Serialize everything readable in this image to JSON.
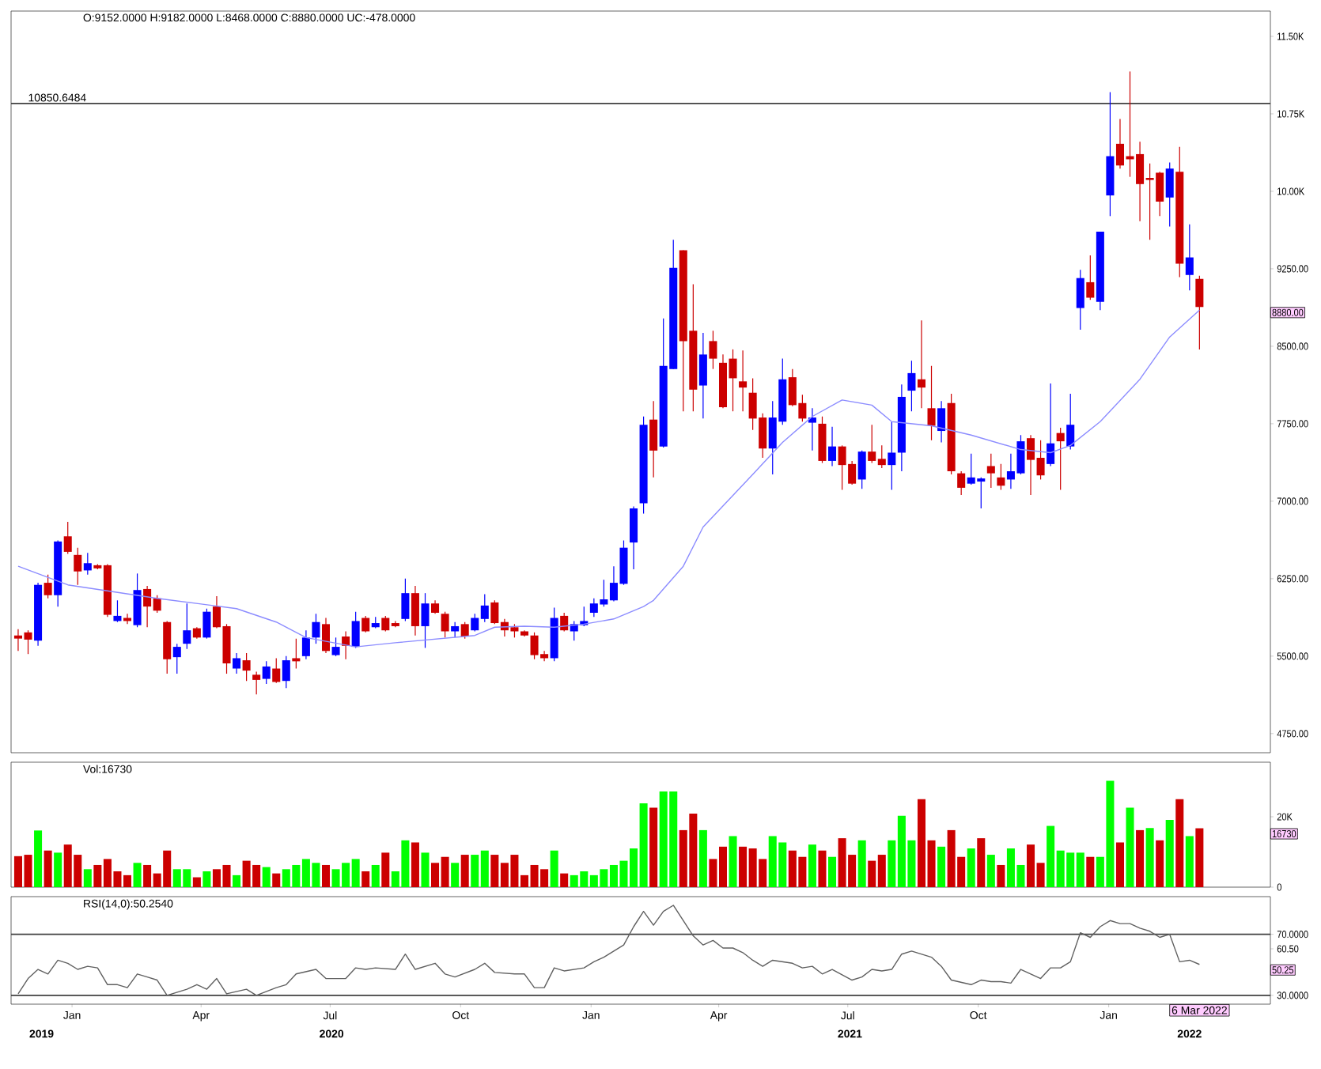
{
  "chart_data": [
    {
      "type": "candlestick",
      "x": [
        "2019-11-24",
        "2019-12-01",
        "2019-12-08",
        "2019-12-15",
        "2019-12-22",
        "2019-12-29",
        "2020-01-05",
        "2020-01-12",
        "2020-01-19",
        "2020-01-26",
        "2020-02-02",
        "2020-02-09",
        "2020-02-16",
        "2020-02-23",
        "2020-03-01",
        "2020-03-08",
        "2020-03-15",
        "2020-03-22",
        "2020-03-29",
        "2020-04-05",
        "2020-04-12",
        "2020-04-19",
        "2020-04-26",
        "2020-05-03",
        "2020-05-10",
        "2020-05-17",
        "2020-05-24",
        "2020-05-31",
        "2020-06-07",
        "2020-06-14",
        "2020-06-21",
        "2020-06-28",
        "2020-07-05",
        "2020-07-12",
        "2020-07-19",
        "2020-07-26",
        "2020-08-02",
        "2020-08-09",
        "2020-08-16",
        "2020-08-23",
        "2020-08-30",
        "2020-09-06",
        "2020-09-13",
        "2020-09-20",
        "2020-09-27",
        "2020-10-04",
        "2020-10-11",
        "2020-10-18",
        "2020-10-25",
        "2020-11-01",
        "2020-11-08",
        "2020-11-15",
        "2020-11-22",
        "2020-11-29",
        "2020-12-06",
        "2020-12-13",
        "2020-12-20",
        "2020-12-27",
        "2021-01-03",
        "2021-01-10",
        "2021-01-17",
        "2021-01-24",
        "2021-01-31",
        "2021-02-07",
        "2021-02-14",
        "2021-02-21",
        "2021-02-28",
        "2021-03-07",
        "2021-03-14",
        "2021-03-21",
        "2021-03-28",
        "2021-04-04",
        "2021-04-11",
        "2021-04-18",
        "2021-04-25",
        "2021-05-02",
        "2021-05-09",
        "2021-05-16",
        "2021-05-23",
        "2021-05-30",
        "2021-06-06",
        "2021-06-13",
        "2021-06-20",
        "2021-06-27",
        "2021-07-04",
        "2021-07-11",
        "2021-07-18",
        "2021-07-25",
        "2021-08-01",
        "2021-08-08",
        "2021-08-15",
        "2021-08-22",
        "2021-08-29",
        "2021-09-05",
        "2021-09-12",
        "2021-09-19",
        "2021-09-26",
        "2021-10-03",
        "2021-10-10",
        "2021-10-17",
        "2021-10-24",
        "2021-10-31",
        "2021-11-07",
        "2021-11-14",
        "2021-11-21",
        "2021-11-28",
        "2021-12-05",
        "2021-12-12",
        "2021-12-19",
        "2021-12-26",
        "2022-01-02",
        "2022-01-09",
        "2022-01-16",
        "2022-01-23",
        "2022-01-30",
        "2022-02-06",
        "2022-02-13",
        "2022-02-20",
        "2022-02-27",
        "2022-03-06"
      ],
      "ohlc": [
        [
          5700,
          5760,
          5550,
          5670
        ],
        [
          5730,
          5750,
          5520,
          5660
        ],
        [
          5650,
          6210,
          5600,
          6190
        ],
        [
          6210,
          6290,
          6060,
          6090
        ],
        [
          6090,
          6620,
          5980,
          6610
        ],
        [
          6660,
          6800,
          6490,
          6510
        ],
        [
          6480,
          6550,
          6190,
          6320
        ],
        [
          6330,
          6500,
          6290,
          6400
        ],
        [
          6380,
          6390,
          6340,
          6350
        ],
        [
          6380,
          6390,
          5880,
          5900
        ],
        [
          5840,
          6040,
          5830,
          5890
        ],
        [
          5870,
          5910,
          5810,
          5840
        ],
        [
          5800,
          6300,
          5780,
          6140
        ],
        [
          6150,
          6180,
          5780,
          5980
        ],
        [
          6060,
          6090,
          5920,
          5940
        ],
        [
          5830,
          5840,
          5330,
          5470
        ],
        [
          5490,
          5620,
          5330,
          5590
        ],
        [
          5620,
          6010,
          5570,
          5750
        ],
        [
          5770,
          5780,
          5670,
          5680
        ],
        [
          5680,
          5960,
          5670,
          5930
        ],
        [
          5980,
          6080,
          5770,
          5780
        ],
        [
          5790,
          5810,
          5330,
          5430
        ],
        [
          5380,
          5530,
          5330,
          5480
        ],
        [
          5460,
          5530,
          5260,
          5360
        ],
        [
          5320,
          5350,
          5130,
          5270
        ],
        [
          5280,
          5450,
          5230,
          5400
        ],
        [
          5380,
          5480,
          5240,
          5250
        ],
        [
          5260,
          5500,
          5190,
          5460
        ],
        [
          5480,
          5670,
          5380,
          5450
        ],
        [
          5500,
          5750,
          5470,
          5680
        ],
        [
          5680,
          5910,
          5620,
          5830
        ],
        [
          5810,
          5870,
          5530,
          5550
        ],
        [
          5510,
          5680,
          5500,
          5590
        ],
        [
          5690,
          5740,
          5470,
          5600
        ],
        [
          5590,
          5930,
          5580,
          5840
        ],
        [
          5870,
          5890,
          5730,
          5740
        ],
        [
          5780,
          5880,
          5770,
          5820
        ],
        [
          5870,
          5890,
          5740,
          5750
        ],
        [
          5820,
          5840,
          5780,
          5790
        ],
        [
          5860,
          6250,
          5840,
          6110
        ],
        [
          6110,
          6180,
          5700,
          5790
        ],
        [
          5790,
          6110,
          5580,
          6010
        ],
        [
          6010,
          6040,
          5910,
          5920
        ],
        [
          5910,
          5930,
          5680,
          5740
        ],
        [
          5740,
          5830,
          5680,
          5790
        ],
        [
          5810,
          5830,
          5670,
          5690
        ],
        [
          5750,
          5910,
          5740,
          5870
        ],
        [
          5860,
          6100,
          5830,
          5990
        ],
        [
          6020,
          6040,
          5810,
          5820
        ],
        [
          5830,
          5860,
          5690,
          5750
        ],
        [
          5780,
          5810,
          5680,
          5740
        ],
        [
          5740,
          5750,
          5690,
          5700
        ],
        [
          5700,
          5730,
          5470,
          5510
        ],
        [
          5520,
          5550,
          5450,
          5480
        ],
        [
          5480,
          5970,
          5450,
          5870
        ],
        [
          5890,
          5920,
          5740,
          5750
        ],
        [
          5740,
          5840,
          5650,
          5810
        ],
        [
          5800,
          5980,
          5790,
          5840
        ],
        [
          5920,
          6060,
          5880,
          6010
        ],
        [
          6000,
          6240,
          5980,
          6050
        ],
        [
          6040,
          6370,
          6030,
          6210
        ],
        [
          6200,
          6620,
          6190,
          6550
        ],
        [
          6600,
          6950,
          6340,
          6930
        ],
        [
          6980,
          7820,
          6880,
          7740
        ],
        [
          7790,
          7970,
          7230,
          7490
        ],
        [
          7530,
          8770,
          7520,
          8310
        ],
        [
          8280,
          9530,
          8280,
          9260
        ],
        [
          9430,
          9430,
          7870,
          8550
        ],
        [
          8650,
          9100,
          7870,
          8080
        ],
        [
          8120,
          8630,
          7800,
          8420
        ],
        [
          8550,
          8650,
          8280,
          8380
        ],
        [
          8340,
          8420,
          7900,
          7910
        ],
        [
          8380,
          8470,
          7870,
          8190
        ],
        [
          8160,
          8460,
          7870,
          8100
        ],
        [
          8050,
          8190,
          7690,
          7800
        ],
        [
          7810,
          7850,
          7420,
          7510
        ],
        [
          7510,
          7970,
          7260,
          7810
        ],
        [
          7770,
          8380,
          7740,
          8180
        ],
        [
          8200,
          8280,
          7920,
          7930
        ],
        [
          7950,
          8030,
          7770,
          7800
        ],
        [
          7760,
          7900,
          7490,
          7810
        ],
        [
          7750,
          7820,
          7370,
          7390
        ],
        [
          7390,
          7720,
          7340,
          7530
        ],
        [
          7530,
          7540,
          7110,
          7350
        ],
        [
          7360,
          7390,
          7160,
          7170
        ],
        [
          7210,
          7490,
          7120,
          7480
        ],
        [
          7480,
          7740,
          7370,
          7390
        ],
        [
          7410,
          7540,
          7320,
          7350
        ],
        [
          7350,
          7770,
          7110,
          7470
        ],
        [
          7470,
          8130,
          7290,
          8010
        ],
        [
          8070,
          8360,
          7870,
          8240
        ],
        [
          8180,
          8750,
          7900,
          8100
        ],
        [
          7900,
          8310,
          7590,
          7730
        ],
        [
          7680,
          7970,
          7570,
          7900
        ],
        [
          7950,
          8040,
          7260,
          7290
        ],
        [
          7270,
          7290,
          7060,
          7130
        ],
        [
          7170,
          7460,
          7160,
          7230
        ],
        [
          7190,
          7230,
          6930,
          7220
        ],
        [
          7340,
          7460,
          7130,
          7270
        ],
        [
          7230,
          7360,
          7110,
          7150
        ],
        [
          7210,
          7460,
          7120,
          7290
        ],
        [
          7270,
          7640,
          7260,
          7580
        ],
        [
          7610,
          7640,
          7060,
          7400
        ],
        [
          7420,
          7590,
          7210,
          7250
        ],
        [
          7360,
          8140,
          7340,
          7560
        ],
        [
          7660,
          7710,
          7110,
          7580
        ],
        [
          7530,
          8040,
          7500,
          7740
        ],
        [
          8870,
          9240,
          8660,
          9160
        ],
        [
          9120,
          9380,
          8950,
          8970
        ],
        [
          8930,
          9610,
          8850,
          9610
        ],
        [
          9960,
          10960,
          9760,
          10340
        ],
        [
          10460,
          10700,
          10220,
          10250
        ],
        [
          10340,
          11160,
          10140,
          10310
        ],
        [
          10360,
          10480,
          9710,
          10070
        ],
        [
          10130,
          10270,
          9530,
          10110
        ],
        [
          10180,
          10190,
          9760,
          9900
        ],
        [
          9940,
          10280,
          9660,
          10220
        ],
        [
          10190,
          10430,
          9170,
          9300
        ],
        [
          9190,
          9680,
          9040,
          9360
        ],
        [
          9152,
          9182,
          8468,
          8880
        ]
      ],
      "colors": [
        "#cc0000",
        "#cc0000",
        "#0000ff",
        "#cc0000",
        "#0000ff",
        "#cc0000",
        "#cc0000",
        "#0000ff",
        "#cc0000",
        "#cc0000",
        "#0000ff",
        "#cc0000",
        "#0000ff",
        "#cc0000",
        "#cc0000",
        "#cc0000",
        "#0000ff",
        "#0000ff",
        "#cc0000",
        "#0000ff",
        "#cc0000",
        "#cc0000",
        "#0000ff",
        "#cc0000",
        "#cc0000",
        "#0000ff",
        "#cc0000",
        "#0000ff",
        "#cc0000",
        "#0000ff",
        "#0000ff",
        "#cc0000",
        "#0000ff",
        "#cc0000",
        "#0000ff",
        "#cc0000",
        "#0000ff",
        "#cc0000",
        "#cc0000",
        "#0000ff",
        "#cc0000",
        "#0000ff",
        "#cc0000",
        "#cc0000",
        "#0000ff",
        "#cc0000",
        "#0000ff",
        "#0000ff",
        "#cc0000",
        "#cc0000",
        "#cc0000",
        "#cc0000",
        "#cc0000",
        "#cc0000",
        "#0000ff",
        "#cc0000",
        "#0000ff",
        "#0000ff",
        "#0000ff",
        "#0000ff",
        "#0000ff",
        "#0000ff",
        "#0000ff",
        "#0000ff",
        "#cc0000",
        "#0000ff",
        "#0000ff",
        "#cc0000",
        "#cc0000",
        "#0000ff",
        "#cc0000",
        "#cc0000",
        "#cc0000",
        "#cc0000",
        "#cc0000",
        "#cc0000",
        "#0000ff",
        "#0000ff",
        "#cc0000",
        "#cc0000",
        "#0000ff",
        "#cc0000",
        "#0000ff",
        "#cc0000",
        "#cc0000",
        "#0000ff",
        "#cc0000",
        "#cc0000",
        "#0000ff",
        "#0000ff",
        "#0000ff",
        "#cc0000",
        "#cc0000",
        "#0000ff",
        "#cc0000",
        "#cc0000",
        "#0000ff",
        "#0000ff",
        "#cc0000",
        "#cc0000",
        "#0000ff",
        "#0000ff",
        "#cc0000",
        "#cc0000",
        "#0000ff",
        "#cc0000",
        "#0000ff",
        "#0000ff",
        "#cc0000",
        "#0000ff",
        "#0000ff",
        "#cc0000",
        "#cc0000",
        "#cc0000",
        "#cc0000",
        "#cc0000",
        "#0000ff",
        "#cc0000",
        "#0000ff",
        "#cc0000"
      ],
      "series": [
        {
          "type": "line",
          "color": "#8c8cff",
          "x": [
            "2019-11-24",
            "2019-12-29",
            "2020-03-01",
            "2020-04-26",
            "2020-05-24",
            "2020-06-14",
            "2020-07-19",
            "2020-08-16",
            "2020-10-11",
            "2020-10-25",
            "2020-11-15",
            "2020-12-06",
            "2020-12-27",
            "2021-01-17",
            "2021-02-07",
            "2021-02-14",
            "2021-03-07",
            "2021-03-21",
            "2021-04-25",
            "2021-05-16",
            "2021-06-06",
            "2021-06-27",
            "2021-07-18",
            "2021-08-01",
            "2021-08-29",
            "2021-09-26",
            "2021-10-31",
            "2021-11-21",
            "2021-12-05",
            "2021-12-26",
            "2022-01-23",
            "2022-02-13",
            "2022-03-06"
          ],
          "values": [
            6370,
            6190,
            6060,
            5960,
            5830,
            5680,
            5590,
            5630,
            5700,
            5780,
            5790,
            5780,
            5810,
            5860,
            5980,
            6040,
            6370,
            6750,
            7260,
            7570,
            7820,
            7980,
            7930,
            7770,
            7730,
            7640,
            7500,
            7470,
            7540,
            7770,
            8180,
            8590,
            8850
          ]
        }
      ],
      "xlim": [
        "2019-11-19",
        "2022-04-25"
      ],
      "ylim": [
        4565,
        11745
      ],
      "yticks": [
        {
          "value": 11500,
          "label": "11.50K"
        },
        {
          "value": 10750,
          "label": "10.75K"
        },
        {
          "value": 10000,
          "label": "10.00K"
        },
        {
          "value": 9250,
          "label": "9250.00"
        },
        {
          "value": 8500,
          "label": "8500.00"
        },
        {
          "value": 7750,
          "label": "7750.00"
        },
        {
          "value": 7000,
          "label": "7000.00"
        },
        {
          "value": 6250,
          "label": "6250.00"
        },
        {
          "value": 5500,
          "label": "5500.00"
        },
        {
          "value": 4750,
          "label": "4750.00"
        }
      ],
      "tick_labels": "y",
      "ref_lines": [
        {
          "axis": "y",
          "value": 10850.6484,
          "label": "10850.6484",
          "color": "#404040"
        }
      ],
      "annotations": [
        "O:9152.0000  H:9182.0000  L:8468.0000  C:8880.0000  UC:-478.0000",
        "8880.00"
      ]
    },
    {
      "type": "bar",
      "x": [
        "2019-11-24",
        "2019-12-01",
        "2019-12-08",
        "2019-12-15",
        "2019-12-22",
        "2019-12-29",
        "2020-01-05",
        "2020-01-12",
        "2020-01-19",
        "2020-01-26",
        "2020-02-02",
        "2020-02-09",
        "2020-02-16",
        "2020-02-23",
        "2020-03-01",
        "2020-03-08",
        "2020-03-15",
        "2020-03-22",
        "2020-03-29",
        "2020-04-05",
        "2020-04-12",
        "2020-04-19",
        "2020-04-26",
        "2020-05-03",
        "2020-05-10",
        "2020-05-17",
        "2020-05-24",
        "2020-05-31",
        "2020-06-07",
        "2020-06-14",
        "2020-06-21",
        "2020-06-28",
        "2020-07-05",
        "2020-07-12",
        "2020-07-19",
        "2020-07-26",
        "2020-08-02",
        "2020-08-09",
        "2020-08-16",
        "2020-08-23",
        "2020-08-30",
        "2020-09-06",
        "2020-09-13",
        "2020-09-20",
        "2020-09-27",
        "2020-10-04",
        "2020-10-11",
        "2020-10-18",
        "2020-10-25",
        "2020-11-01",
        "2020-11-08",
        "2020-11-15",
        "2020-11-22",
        "2020-11-29",
        "2020-12-06",
        "2020-12-13",
        "2020-12-20",
        "2020-12-27",
        "2021-01-03",
        "2021-01-10",
        "2021-01-17",
        "2021-01-24",
        "2021-01-31",
        "2021-02-07",
        "2021-02-14",
        "2021-02-21",
        "2021-02-28",
        "2021-03-07",
        "2021-03-14",
        "2021-03-21",
        "2021-03-28",
        "2021-04-04",
        "2021-04-11",
        "2021-04-18",
        "2021-04-25",
        "2021-05-02",
        "2021-05-09",
        "2021-05-16",
        "2021-05-23",
        "2021-05-30",
        "2021-06-06",
        "2021-06-13",
        "2021-06-20",
        "2021-06-27",
        "2021-07-04",
        "2021-07-11",
        "2021-07-18",
        "2021-07-25",
        "2021-08-01",
        "2021-08-08",
        "2021-08-15",
        "2021-08-22",
        "2021-08-29",
        "2021-09-05",
        "2021-09-12",
        "2021-09-19",
        "2021-09-26",
        "2021-10-03",
        "2021-10-10",
        "2021-10-17",
        "2021-10-24",
        "2021-10-31",
        "2021-11-07",
        "2021-11-14",
        "2021-11-21",
        "2021-11-28",
        "2021-12-05",
        "2021-12-12",
        "2021-12-19",
        "2021-12-26",
        "2022-01-02",
        "2022-01-09",
        "2022-01-16",
        "2022-01-23",
        "2022-01-30",
        "2022-02-06",
        "2022-02-13",
        "2022-02-20",
        "2022-02-27",
        "2022-03-06"
      ],
      "values": [
        8800,
        9200,
        16100,
        10400,
        9800,
        12100,
        9200,
        5100,
        6300,
        8000,
        4500,
        3400,
        6900,
        6300,
        3900,
        10400,
        5100,
        5100,
        2800,
        4500,
        5100,
        6300,
        3400,
        7500,
        6300,
        5700,
        3900,
        5100,
        6300,
        8000,
        6900,
        6300,
        5100,
        6900,
        8000,
        4500,
        6300,
        9800,
        4500,
        13300,
        12700,
        9800,
        6900,
        8600,
        6900,
        9200,
        9200,
        10400,
        9200,
        6900,
        9200,
        3400,
        6300,
        5100,
        10400,
        3900,
        3400,
        4500,
        3400,
        5100,
        6300,
        7500,
        11000,
        23800,
        22600,
        27200,
        27200,
        16200,
        20900,
        16200,
        8000,
        11500,
        14500,
        11500,
        11000,
        8000,
        14500,
        12700,
        10400,
        8600,
        12100,
        10400,
        8600,
        13900,
        9200,
        13300,
        7500,
        9200,
        13300,
        20300,
        13300,
        25000,
        13300,
        11500,
        16200,
        8600,
        11000,
        13900,
        9200,
        6300,
        11000,
        6300,
        12100,
        6900,
        17400,
        10400,
        9800,
        9800,
        8600,
        8600,
        30200,
        12700,
        22600,
        16200,
        16800,
        13300,
        19100,
        25000,
        14500,
        16730
      ],
      "colors": [
        "#cc0000",
        "#cc0000",
        "#00ff00",
        "#cc0000",
        "#00ff00",
        "#cc0000",
        "#cc0000",
        "#00ff00",
        "#cc0000",
        "#cc0000",
        "#cc0000",
        "#cc0000",
        "#00ff00",
        "#cc0000",
        "#cc0000",
        "#cc0000",
        "#00ff00",
        "#00ff00",
        "#cc0000",
        "#00ff00",
        "#cc0000",
        "#cc0000",
        "#00ff00",
        "#cc0000",
        "#cc0000",
        "#00ff00",
        "#cc0000",
        "#00ff00",
        "#00ff00",
        "#00ff00",
        "#00ff00",
        "#cc0000",
        "#00ff00",
        "#00ff00",
        "#00ff00",
        "#cc0000",
        "#00ff00",
        "#cc0000",
        "#00ff00",
        "#00ff00",
        "#cc0000",
        "#00ff00",
        "#cc0000",
        "#cc0000",
        "#00ff00",
        "#cc0000",
        "#00ff00",
        "#00ff00",
        "#cc0000",
        "#cc0000",
        "#cc0000",
        "#cc0000",
        "#cc0000",
        "#cc0000",
        "#00ff00",
        "#cc0000",
        "#00ff00",
        "#00ff00",
        "#00ff00",
        "#00ff00",
        "#00ff00",
        "#00ff00",
        "#00ff00",
        "#00ff00",
        "#cc0000",
        "#00ff00",
        "#00ff00",
        "#cc0000",
        "#cc0000",
        "#00ff00",
        "#cc0000",
        "#cc0000",
        "#00ff00",
        "#cc0000",
        "#cc0000",
        "#cc0000",
        "#00ff00",
        "#00ff00",
        "#cc0000",
        "#cc0000",
        "#00ff00",
        "#cc0000",
        "#00ff00",
        "#cc0000",
        "#cc0000",
        "#00ff00",
        "#cc0000",
        "#cc0000",
        "#00ff00",
        "#00ff00",
        "#00ff00",
        "#cc0000",
        "#cc0000",
        "#00ff00",
        "#cc0000",
        "#cc0000",
        "#00ff00",
        "#cc0000",
        "#00ff00",
        "#cc0000",
        "#00ff00",
        "#00ff00",
        "#cc0000",
        "#cc0000",
        "#00ff00",
        "#00ff00",
        "#00ff00",
        "#00ff00",
        "#cc0000",
        "#00ff00",
        "#00ff00",
        "#cc0000",
        "#00ff00",
        "#cc0000",
        "#00ff00",
        "#cc0000",
        "#00ff00",
        "#cc0000",
        "#00ff00",
        "#cc0000"
      ],
      "xlim": [
        "2019-11-19",
        "2022-04-25"
      ],
      "ylim": [
        0,
        35500
      ],
      "yticks": [
        0,
        {
          "value": 20000,
          "label": "20K"
        }
      ],
      "tick_labels": "y",
      "annotations": [
        "Vol:16730",
        "16730"
      ]
    },
    {
      "type": "line",
      "series": [
        {
          "color": "#606060",
          "x": [
            "2019-11-24",
            "2019-12-01",
            "2019-12-08",
            "2019-12-15",
            "2019-12-22",
            "2019-12-29",
            "2020-01-05",
            "2020-01-12",
            "2020-01-19",
            "2020-01-26",
            "2020-02-02",
            "2020-02-09",
            "2020-02-16",
            "2020-02-23",
            "2020-03-01",
            "2020-03-08",
            "2020-03-22",
            "2020-03-29",
            "2020-04-05",
            "2020-04-12",
            "2020-04-19",
            "2020-05-03",
            "2020-05-10",
            "2020-05-24",
            "2020-05-31",
            "2020-06-07",
            "2020-06-21",
            "2020-06-28",
            "2020-07-12",
            "2020-07-19",
            "2020-07-26",
            "2020-08-02",
            "2020-08-16",
            "2020-08-23",
            "2020-08-30",
            "2020-09-13",
            "2020-09-20",
            "2020-09-27",
            "2020-10-11",
            "2020-10-18",
            "2020-10-25",
            "2020-11-08",
            "2020-11-15",
            "2020-11-22",
            "2020-11-29",
            "2020-12-06",
            "2020-12-13",
            "2020-12-27",
            "2021-01-03",
            "2021-01-10",
            "2021-01-24",
            "2021-01-31",
            "2021-02-07",
            "2021-02-14",
            "2021-02-21",
            "2021-02-28",
            "2021-03-14",
            "2021-03-21",
            "2021-03-28",
            "2021-04-04",
            "2021-04-11",
            "2021-04-18",
            "2021-04-25",
            "2021-05-02",
            "2021-05-09",
            "2021-05-23",
            "2021-05-30",
            "2021-06-06",
            "2021-06-13",
            "2021-06-20",
            "2021-07-04",
            "2021-07-11",
            "2021-07-18",
            "2021-07-25",
            "2021-08-01",
            "2021-08-08",
            "2021-08-15",
            "2021-08-29",
            "2021-09-05",
            "2021-09-12",
            "2021-09-26",
            "2021-10-03",
            "2021-10-10",
            "2021-10-17",
            "2021-10-24",
            "2021-10-31",
            "2021-11-07",
            "2021-11-14",
            "2021-11-21",
            "2021-11-28",
            "2021-12-05",
            "2021-12-12",
            "2021-12-19",
            "2021-12-26",
            "2022-01-02",
            "2022-01-09",
            "2022-01-16",
            "2022-01-23",
            "2022-01-30",
            "2022-02-06",
            "2022-02-13",
            "2022-02-20",
            "2022-02-27",
            "2022-03-06"
          ],
          "values": [
            31,
            41,
            47,
            44,
            53,
            51,
            47,
            49,
            48,
            37,
            37,
            35,
            44,
            42,
            40,
            30,
            34,
            37,
            34,
            41,
            31,
            34,
            30,
            35,
            37,
            44,
            47,
            41,
            41,
            48,
            47,
            48,
            47,
            57,
            47,
            51,
            44,
            42,
            47,
            51,
            45,
            44,
            44,
            35,
            35,
            48,
            46,
            48,
            52,
            55,
            63,
            75,
            85,
            76,
            85,
            89,
            69,
            63,
            66,
            61,
            61,
            58,
            53,
            49,
            53,
            51,
            48,
            49,
            44,
            47,
            40,
            42,
            47,
            46,
            47,
            57,
            59,
            55,
            49,
            40,
            37,
            40,
            39,
            39,
            38,
            47,
            44,
            41,
            48,
            48,
            52,
            71,
            68,
            75,
            79,
            77,
            77,
            74,
            72,
            68,
            70,
            52,
            53,
            50.254
          ]
        }
      ],
      "xlim": [
        "2019-11-19",
        "2022-04-25"
      ],
      "ylim": [
        24.2,
        94.7
      ],
      "xticks": [
        {
          "value": "2020-01-01",
          "label": "Jan"
        },
        {
          "value": "2020-04-01",
          "label": "Apr"
        },
        {
          "value": "2020-07-01",
          "label": "Jul"
        },
        {
          "value": "2020-10-01",
          "label": "Oct"
        },
        {
          "value": "2021-01-01",
          "label": "Jan"
        },
        {
          "value": "2021-04-01",
          "label": "Apr"
        },
        {
          "value": "2021-07-01",
          "label": "Jul"
        },
        {
          "value": "2021-10-01",
          "label": "Oct"
        },
        {
          "value": "2022-01-01",
          "label": "Jan"
        }
      ],
      "yticks": [
        {
          "value": 30,
          "label": "30.0000"
        },
        {
          "value": 60.5,
          "label": "60.50"
        },
        {
          "value": 70,
          "label": "70.0000"
        }
      ],
      "ref_lines": [
        {
          "axis": "y",
          "value": 70,
          "color": "#404040"
        },
        {
          "axis": "y",
          "value": 30,
          "color": "#404040"
        }
      ],
      "annotations": [
        "RSI(14,0):50.2540",
        "50.25",
        "6 Mar 2022",
        "2019",
        "2020",
        "2021",
        "2022"
      ]
    }
  ]
}
